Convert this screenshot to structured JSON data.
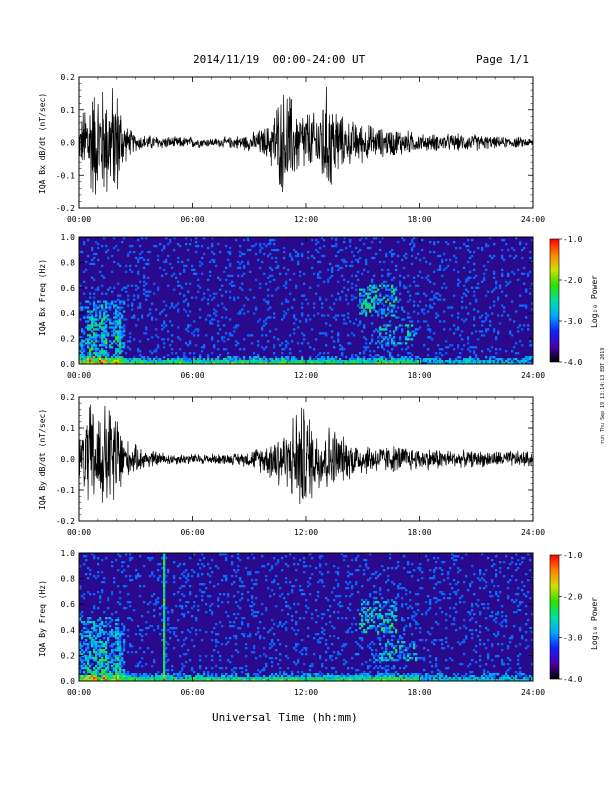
{
  "header": {
    "date_range": "2014/11/19  00:00-24:00 UT",
    "page": "Page 1/1"
  },
  "xaxis_title": "Universal Time (hh:mm)",
  "run_stamp": "run Thu Sep 19 13:14:13 EDT 2019",
  "colors": {
    "waveform": "#000000",
    "spectrogram_bg": "#2a0a8c",
    "colorbar": [
      "#000000",
      "#4b00a8",
      "#1020ff",
      "#00a8ff",
      "#00e0a0",
      "#30e000",
      "#d0e000",
      "#ff8000",
      "#ff0000"
    ]
  },
  "chart_data": [
    {
      "type": "line",
      "panel": "IQA Bx waveform",
      "ylabel": "IQA Bx dB/dt (nT/sec)",
      "xlabel": "",
      "x_ticks": [
        "00:00",
        "06:00",
        "12:00",
        "18:00",
        "24:00"
      ],
      "x_range_hours": [
        0,
        24
      ],
      "y_ticks": [
        "0.2",
        "0.1",
        "0.0",
        "-0.1",
        "-0.2"
      ],
      "ylim": [
        -0.2,
        0.2
      ],
      "envelope_hours": [
        0,
        0.5,
        1,
        1.5,
        2,
        2.5,
        3,
        4,
        5,
        6,
        7,
        8,
        9,
        10,
        10.5,
        11,
        11.5,
        12,
        12.5,
        13,
        13.5,
        14,
        15,
        16,
        17,
        18,
        19,
        20,
        21,
        22,
        23,
        24
      ],
      "envelope_amplitude": [
        0.05,
        0.2,
        0.2,
        0.2,
        0.2,
        0.06,
        0.03,
        0.025,
        0.02,
        0.02,
        0.015,
        0.02,
        0.03,
        0.06,
        0.15,
        0.2,
        0.12,
        0.12,
        0.1,
        0.2,
        0.15,
        0.08,
        0.07,
        0.05,
        0.05,
        0.03,
        0.03,
        0.03,
        0.03,
        0.02,
        0.02,
        0.015
      ]
    },
    {
      "type": "heatmap",
      "panel": "IQA Bx spectrogram",
      "ylabel": "IQA Bx Freq (Hz)",
      "xlabel": "",
      "x_ticks": [
        "00:00",
        "06:00",
        "12:00",
        "18:00",
        "24:00"
      ],
      "x_range_hours": [
        0,
        24
      ],
      "y_ticks": [
        "1.0",
        "0.8",
        "0.6",
        "0.4",
        "0.2",
        "0.0"
      ],
      "ylim": [
        0.0,
        1.0
      ],
      "colorbar_label": "Log₁₀ Power",
      "colorbar_ticks": [
        "-1.0",
        "-2.0",
        "-3.0",
        "-4.0"
      ],
      "colorbar_range": [
        -4.0,
        -1.0
      ]
    },
    {
      "type": "line",
      "panel": "IQA By waveform",
      "ylabel": "IQA By dB/dt (nT/sec)",
      "xlabel": "",
      "x_ticks": [
        "00:00",
        "06:00",
        "12:00",
        "18:00",
        "24:00"
      ],
      "x_range_hours": [
        0,
        24
      ],
      "y_ticks": [
        "0.2",
        "0.1",
        "0.0",
        "-0.1",
        "-0.2"
      ],
      "ylim": [
        -0.2,
        0.2
      ],
      "envelope_hours": [
        0,
        0.5,
        1,
        1.5,
        2,
        2.5,
        3,
        4,
        5,
        6,
        7,
        8,
        9,
        10,
        10.5,
        11,
        11.5,
        12,
        12.5,
        13,
        13.5,
        14,
        15,
        16,
        17,
        18,
        19,
        20,
        21,
        22,
        23,
        24
      ],
      "envelope_amplitude": [
        0.06,
        0.2,
        0.2,
        0.2,
        0.2,
        0.07,
        0.05,
        0.03,
        0.02,
        0.02,
        0.02,
        0.02,
        0.03,
        0.06,
        0.12,
        0.1,
        0.2,
        0.2,
        0.12,
        0.13,
        0.12,
        0.08,
        0.06,
        0.05,
        0.05,
        0.04,
        0.04,
        0.03,
        0.03,
        0.03,
        0.03,
        0.03
      ]
    },
    {
      "type": "heatmap",
      "panel": "IQA By spectrogram",
      "ylabel": "IQA By Freq (Hz)",
      "xlabel": "Universal Time (hh:mm)",
      "x_ticks": [
        "00:00",
        "06:00",
        "12:00",
        "18:00",
        "24:00"
      ],
      "x_range_hours": [
        0,
        24
      ],
      "y_ticks": [
        "1.0",
        "0.8",
        "0.6",
        "0.4",
        "0.2",
        "0.0"
      ],
      "ylim": [
        0.0,
        1.0
      ],
      "colorbar_label": "Log₁₀ Power",
      "colorbar_ticks": [
        "-1.0",
        "-2.0",
        "-3.0",
        "-4.0"
      ],
      "colorbar_range": [
        -4.0,
        -1.0
      ]
    }
  ]
}
